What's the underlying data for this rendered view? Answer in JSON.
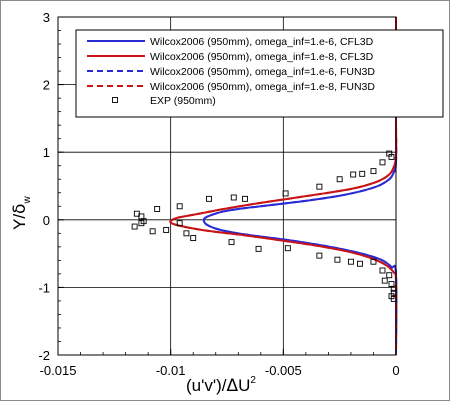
{
  "chart_data": {
    "type": "line",
    "xlabel_main": "(u'v')/",
    "xlabel_delta": "Δ",
    "xlabel_U": "U",
    "xlabel_sup": "2",
    "ylabel_main": "Y/",
    "ylabel_delta": "δ",
    "ylabel_sub": "w",
    "xlim": [
      -0.015,
      0
    ],
    "ylim": [
      -2,
      3
    ],
    "grid": true,
    "legend_position": "top-right",
    "x_ticks": [
      "-0.015",
      "-0.01",
      "-0.005",
      "0"
    ],
    "y_ticks": [
      "-2",
      "-1",
      "0",
      "1",
      "2",
      "3"
    ],
    "x_tick_values": [
      -0.015,
      -0.01,
      -0.005,
      0
    ],
    "y_tick_values": [
      -2,
      -1,
      0,
      1,
      2,
      3
    ],
    "series": [
      {
        "name": "Wilcox2006 (950mm), omega_inf=1.e-6, CFL3D",
        "color": "#2a2ad4",
        "dash": "solid",
        "points": [
          [
            0,
            3
          ],
          [
            0,
            1.5
          ],
          [
            0,
            0.85
          ],
          [
            -0.0001,
            0.7
          ],
          [
            -0.0003,
            0.6
          ],
          [
            -0.0008,
            0.5
          ],
          [
            -0.0016,
            0.42
          ],
          [
            -0.0026,
            0.35
          ],
          [
            -0.0038,
            0.29
          ],
          [
            -0.005,
            0.24
          ],
          [
            -0.006,
            0.2
          ],
          [
            -0.007,
            0.16
          ],
          [
            -0.0077,
            0.12
          ],
          [
            -0.0082,
            0.07
          ],
          [
            -0.0085,
            0.02
          ],
          [
            -0.0085,
            -0.04
          ],
          [
            -0.0083,
            -0.09
          ],
          [
            -0.0079,
            -0.14
          ],
          [
            -0.0072,
            -0.19
          ],
          [
            -0.0062,
            -0.24
          ],
          [
            -0.005,
            -0.29
          ],
          [
            -0.0038,
            -0.35
          ],
          [
            -0.0026,
            -0.42
          ],
          [
            -0.0014,
            -0.51
          ],
          [
            -0.0006,
            -0.6
          ],
          [
            -0.0002,
            -0.7
          ],
          [
            0,
            -0.8
          ],
          [
            0,
            -2
          ]
        ]
      },
      {
        "name": "Wilcox2006 (950mm), omega_inf=1.e-8, CFL3D",
        "color": "#c81414",
        "dash": "solid",
        "points": [
          [
            0,
            3
          ],
          [
            0,
            1.5
          ],
          [
            0,
            0.95
          ],
          [
            -0.0001,
            0.78
          ],
          [
            -0.0003,
            0.67
          ],
          [
            -0.0008,
            0.57
          ],
          [
            -0.0018,
            0.47
          ],
          [
            -0.0032,
            0.39
          ],
          [
            -0.0048,
            0.31
          ],
          [
            -0.0064,
            0.23
          ],
          [
            -0.0078,
            0.15
          ],
          [
            -0.0089,
            0.08
          ],
          [
            -0.0097,
            0.03
          ],
          [
            -0.01,
            -0.02
          ],
          [
            -0.0099,
            -0.06
          ],
          [
            -0.0093,
            -0.11
          ],
          [
            -0.0082,
            -0.17
          ],
          [
            -0.0067,
            -0.23
          ],
          [
            -0.005,
            -0.31
          ],
          [
            -0.0034,
            -0.39
          ],
          [
            -0.002,
            -0.48
          ],
          [
            -0.001,
            -0.58
          ],
          [
            -0.0004,
            -0.68
          ],
          [
            -0.0001,
            -0.78
          ],
          [
            0,
            -0.9
          ],
          [
            0,
            -2
          ]
        ]
      },
      {
        "name": "Wilcox2006 (950mm), omega_inf=1.e-6, FUN3D",
        "color": "#2a2ad4",
        "dash": "dashed",
        "points": [
          [
            0,
            3
          ],
          [
            0,
            1.5
          ],
          [
            0,
            0.85
          ],
          [
            -0.0001,
            0.7
          ],
          [
            -0.0003,
            0.6
          ],
          [
            -0.0008,
            0.5
          ],
          [
            -0.0016,
            0.42
          ],
          [
            -0.0026,
            0.35
          ],
          [
            -0.0038,
            0.29
          ],
          [
            -0.005,
            0.24
          ],
          [
            -0.006,
            0.2
          ],
          [
            -0.007,
            0.16
          ],
          [
            -0.0077,
            0.12
          ],
          [
            -0.0082,
            0.07
          ],
          [
            -0.0085,
            0.02
          ],
          [
            -0.0085,
            -0.04
          ],
          [
            -0.0083,
            -0.09
          ],
          [
            -0.0079,
            -0.14
          ],
          [
            -0.0072,
            -0.19
          ],
          [
            -0.0062,
            -0.24
          ],
          [
            -0.005,
            -0.29
          ],
          [
            -0.0038,
            -0.35
          ],
          [
            -0.0026,
            -0.42
          ],
          [
            -0.0014,
            -0.51
          ],
          [
            -0.0006,
            -0.6
          ],
          [
            -0.0002,
            -0.7
          ],
          [
            0,
            -0.8
          ],
          [
            0,
            -2
          ]
        ]
      },
      {
        "name": "Wilcox2006 (950mm), omega_inf=1.e-8, FUN3D",
        "color": "#c81414",
        "dash": "dashed",
        "points": [
          [
            0,
            3
          ],
          [
            0,
            1.5
          ],
          [
            0,
            0.95
          ],
          [
            -0.0001,
            0.78
          ],
          [
            -0.0003,
            0.67
          ],
          [
            -0.0008,
            0.57
          ],
          [
            -0.0018,
            0.47
          ],
          [
            -0.0032,
            0.39
          ],
          [
            -0.0048,
            0.31
          ],
          [
            -0.0064,
            0.23
          ],
          [
            -0.0078,
            0.15
          ],
          [
            -0.0089,
            0.08
          ],
          [
            -0.0097,
            0.03
          ],
          [
            -0.01,
            -0.02
          ],
          [
            -0.0099,
            -0.06
          ],
          [
            -0.0093,
            -0.11
          ],
          [
            -0.0082,
            -0.17
          ],
          [
            -0.0067,
            -0.23
          ],
          [
            -0.005,
            -0.31
          ],
          [
            -0.0034,
            -0.39
          ],
          [
            -0.002,
            -0.48
          ],
          [
            -0.001,
            -0.58
          ],
          [
            -0.0004,
            -0.68
          ],
          [
            -0.0001,
            -0.78
          ],
          [
            0,
            -0.9
          ],
          [
            0,
            -2
          ]
        ]
      }
    ],
    "exp": {
      "name": "EXP (950mm)",
      "points": [
        [
          -0.0003,
          0.98
        ],
        [
          -0.0002,
          0.93
        ],
        [
          -0.0006,
          0.85
        ],
        [
          -0.001,
          0.72
        ],
        [
          -0.0015,
          0.68
        ],
        [
          -0.0019,
          0.67
        ],
        [
          -0.0025,
          0.6
        ],
        [
          -0.0034,
          0.49
        ],
        [
          -0.0049,
          0.39
        ],
        [
          -0.0067,
          0.31
        ],
        [
          -0.0072,
          0.33
        ],
        [
          -0.0083,
          0.31
        ],
        [
          -0.0096,
          0.2
        ],
        [
          -0.0106,
          0.16
        ],
        [
          -0.0115,
          0.09
        ],
        [
          -0.0113,
          0.05
        ],
        [
          -0.0116,
          -0.1
        ],
        [
          -0.0113,
          -0.05
        ],
        [
          -0.0112,
          -0.02
        ],
        [
          -0.0096,
          -0.05
        ],
        [
          -0.0102,
          -0.15
        ],
        [
          -0.0108,
          -0.17
        ],
        [
          -0.0093,
          -0.2
        ],
        [
          -0.009,
          -0.27
        ],
        [
          -0.0073,
          -0.33
        ],
        [
          -0.0061,
          -0.43
        ],
        [
          -0.0048,
          -0.42
        ],
        [
          -0.0034,
          -0.53
        ],
        [
          -0.0026,
          -0.59
        ],
        [
          -0.002,
          -0.62
        ],
        [
          -0.0016,
          -0.65
        ],
        [
          -0.001,
          -0.62
        ],
        [
          -0.0006,
          -0.75
        ],
        [
          -0.0003,
          -0.82
        ],
        [
          -0.0005,
          -0.9
        ],
        [
          -0.0002,
          -0.95
        ],
        [
          -0.0001,
          -1.02
        ],
        [
          -0.0001,
          -1.08
        ],
        [
          -0.0002,
          -1.13
        ],
        [
          -0.0001,
          -1.17
        ]
      ]
    }
  }
}
